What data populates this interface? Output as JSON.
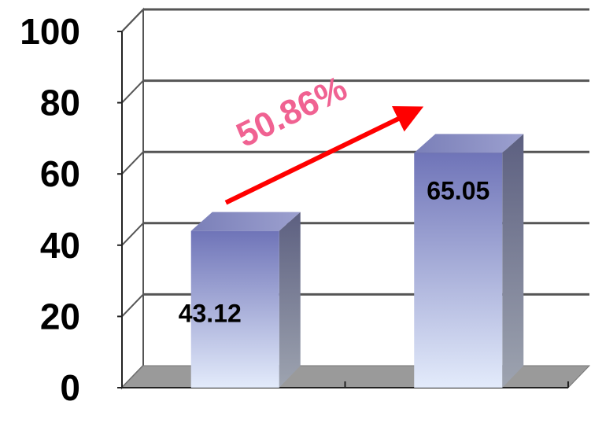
{
  "chart_data": {
    "type": "bar",
    "categories": [
      "",
      ""
    ],
    "values": [
      43.12,
      65.05
    ],
    "data_labels": [
      "43.12",
      "65.05"
    ],
    "y_ticks": [
      {
        "value": 0,
        "label": "0"
      },
      {
        "value": 20,
        "label": "20"
      },
      {
        "value": 40,
        "label": "40"
      },
      {
        "value": 60,
        "label": "60"
      },
      {
        "value": 80,
        "label": "80"
      },
      {
        "value": 100,
        "label": "100"
      }
    ],
    "ylim": [
      0,
      100
    ],
    "grid": true,
    "style": "3d-column",
    "annotation": {
      "text": "50.86%",
      "kind": "growth-arrow",
      "color": "#f06292",
      "arrow_color": "#ff0000"
    },
    "colors": {
      "bar_top": "#6f74b8",
      "bar_bottom": "#e3ebfb",
      "bar_side": "#6e7390",
      "floor": "#9a9a9a",
      "gridline": "#555555"
    }
  }
}
